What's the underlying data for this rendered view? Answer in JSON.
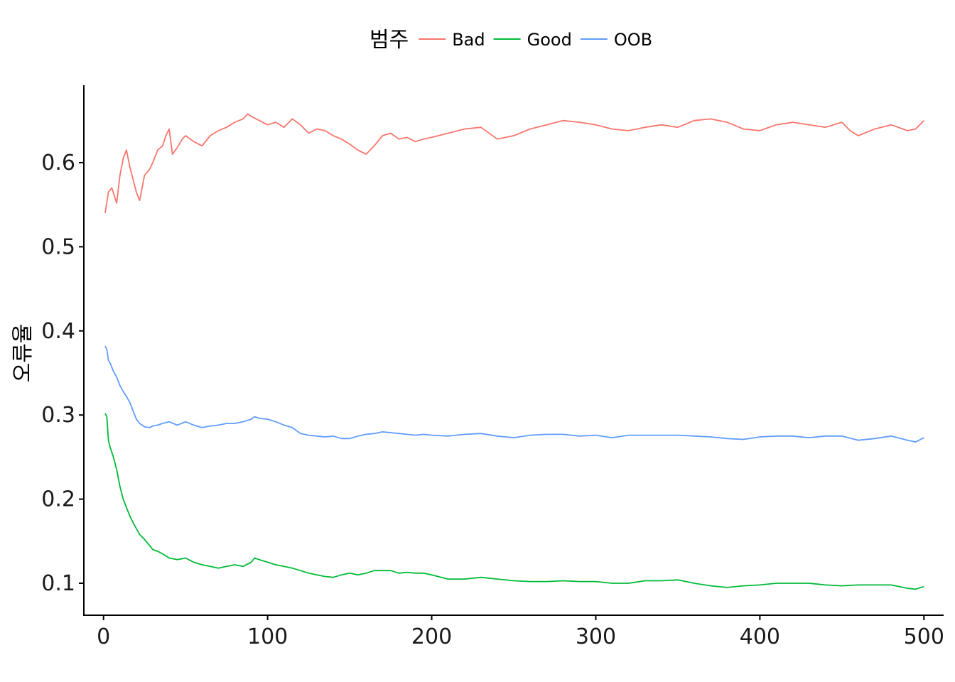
{
  "chart_data": {
    "type": "line",
    "title": "",
    "xlabel": "",
    "ylabel": "오류율",
    "xlim": [
      -12,
      512
    ],
    "ylim": [
      0.062,
      0.692
    ],
    "xticks": [
      0,
      100,
      200,
      300,
      400,
      500
    ],
    "xtick_labels": [
      "0",
      "100",
      "200",
      "300",
      "400",
      "500"
    ],
    "yticks": [
      0.1,
      0.2,
      0.3,
      0.4,
      0.5,
      0.6
    ],
    "ytick_labels": [
      "0.1",
      "0.2",
      "0.3",
      "0.4",
      "0.5",
      "0.6"
    ],
    "grid": false,
    "legend": {
      "position": "top",
      "title": "범주",
      "entries": [
        "Bad",
        "Good",
        "OOB"
      ]
    },
    "series": [
      {
        "name": "Bad",
        "color": "#F8766D",
        "x": [
          1,
          3,
          5,
          8,
          10,
          12,
          14,
          16,
          18,
          20,
          22,
          25,
          28,
          30,
          33,
          36,
          38,
          40,
          42,
          45,
          48,
          50,
          55,
          60,
          65,
          70,
          75,
          80,
          85,
          88,
          90,
          95,
          100,
          105,
          110,
          115,
          120,
          125,
          130,
          135,
          140,
          145,
          150,
          155,
          160,
          165,
          170,
          175,
          180,
          185,
          190,
          195,
          200,
          210,
          220,
          230,
          240,
          250,
          260,
          270,
          280,
          290,
          300,
          310,
          320,
          330,
          340,
          350,
          360,
          370,
          380,
          390,
          400,
          410,
          420,
          430,
          440,
          450,
          455,
          460,
          470,
          480,
          490,
          495,
          500
        ],
        "y": [
          0.54,
          0.565,
          0.57,
          0.552,
          0.585,
          0.605,
          0.615,
          0.595,
          0.58,
          0.565,
          0.555,
          0.585,
          0.592,
          0.6,
          0.615,
          0.62,
          0.632,
          0.64,
          0.61,
          0.618,
          0.628,
          0.632,
          0.625,
          0.62,
          0.632,
          0.638,
          0.642,
          0.648,
          0.652,
          0.658,
          0.655,
          0.65,
          0.645,
          0.648,
          0.642,
          0.652,
          0.645,
          0.635,
          0.64,
          0.638,
          0.632,
          0.628,
          0.622,
          0.615,
          0.61,
          0.62,
          0.632,
          0.635,
          0.628,
          0.63,
          0.625,
          0.628,
          0.63,
          0.635,
          0.64,
          0.642,
          0.628,
          0.632,
          0.64,
          0.645,
          0.65,
          0.648,
          0.645,
          0.64,
          0.638,
          0.642,
          0.645,
          0.642,
          0.65,
          0.652,
          0.648,
          0.64,
          0.638,
          0.645,
          0.648,
          0.645,
          0.642,
          0.648,
          0.638,
          0.632,
          0.64,
          0.645,
          0.638,
          0.64,
          0.65
        ]
      },
      {
        "name": "Good",
        "color": "#00BA38",
        "x": [
          1,
          2,
          3,
          4,
          6,
          8,
          10,
          12,
          14,
          16,
          18,
          20,
          22,
          25,
          28,
          30,
          33,
          36,
          40,
          45,
          50,
          55,
          60,
          65,
          70,
          75,
          80,
          85,
          90,
          92,
          95,
          100,
          105,
          110,
          115,
          120,
          125,
          130,
          135,
          140,
          145,
          150,
          155,
          160,
          165,
          170,
          175,
          180,
          185,
          190,
          195,
          200,
          210,
          220,
          230,
          240,
          250,
          260,
          270,
          280,
          290,
          300,
          310,
          320,
          330,
          340,
          350,
          360,
          370,
          380,
          390,
          400,
          410,
          420,
          430,
          440,
          450,
          460,
          470,
          480,
          490,
          495,
          500
        ],
        "y": [
          0.302,
          0.298,
          0.27,
          0.262,
          0.25,
          0.235,
          0.215,
          0.2,
          0.19,
          0.18,
          0.172,
          0.165,
          0.158,
          0.152,
          0.145,
          0.14,
          0.138,
          0.135,
          0.13,
          0.128,
          0.13,
          0.125,
          0.122,
          0.12,
          0.118,
          0.12,
          0.122,
          0.12,
          0.125,
          0.13,
          0.128,
          0.125,
          0.122,
          0.12,
          0.118,
          0.115,
          0.112,
          0.11,
          0.108,
          0.107,
          0.11,
          0.112,
          0.11,
          0.112,
          0.115,
          0.115,
          0.115,
          0.112,
          0.113,
          0.112,
          0.112,
          0.11,
          0.105,
          0.105,
          0.107,
          0.105,
          0.103,
          0.102,
          0.102,
          0.103,
          0.102,
          0.102,
          0.1,
          0.1,
          0.103,
          0.103,
          0.104,
          0.1,
          0.097,
          0.095,
          0.097,
          0.098,
          0.1,
          0.1,
          0.1,
          0.098,
          0.097,
          0.098,
          0.098,
          0.098,
          0.094,
          0.093,
          0.096
        ]
      },
      {
        "name": "OOB",
        "color": "#619CFF",
        "x": [
          1,
          2,
          3,
          4,
          6,
          8,
          10,
          12,
          14,
          16,
          18,
          20,
          22,
          25,
          28,
          30,
          33,
          36,
          40,
          45,
          50,
          55,
          60,
          65,
          70,
          75,
          80,
          85,
          90,
          92,
          95,
          100,
          105,
          110,
          115,
          120,
          125,
          130,
          135,
          140,
          145,
          150,
          155,
          160,
          165,
          170,
          175,
          180,
          185,
          190,
          195,
          200,
          210,
          220,
          230,
          240,
          250,
          260,
          270,
          280,
          290,
          300,
          310,
          320,
          330,
          340,
          350,
          360,
          370,
          380,
          390,
          400,
          410,
          420,
          430,
          440,
          450,
          460,
          470,
          480,
          490,
          495,
          500
        ],
        "y": [
          0.382,
          0.378,
          0.365,
          0.362,
          0.352,
          0.345,
          0.335,
          0.328,
          0.322,
          0.315,
          0.305,
          0.295,
          0.29,
          0.286,
          0.285,
          0.287,
          0.288,
          0.29,
          0.292,
          0.288,
          0.292,
          0.288,
          0.285,
          0.287,
          0.288,
          0.29,
          0.29,
          0.292,
          0.295,
          0.298,
          0.296,
          0.295,
          0.292,
          0.288,
          0.285,
          0.278,
          0.276,
          0.275,
          0.274,
          0.275,
          0.272,
          0.272,
          0.275,
          0.277,
          0.278,
          0.28,
          0.279,
          0.278,
          0.277,
          0.276,
          0.277,
          0.276,
          0.275,
          0.277,
          0.278,
          0.275,
          0.273,
          0.276,
          0.277,
          0.277,
          0.275,
          0.276,
          0.273,
          0.276,
          0.276,
          0.276,
          0.276,
          0.275,
          0.274,
          0.272,
          0.271,
          0.274,
          0.275,
          0.275,
          0.273,
          0.275,
          0.275,
          0.27,
          0.272,
          0.275,
          0.27,
          0.268,
          0.273
        ]
      }
    ]
  }
}
